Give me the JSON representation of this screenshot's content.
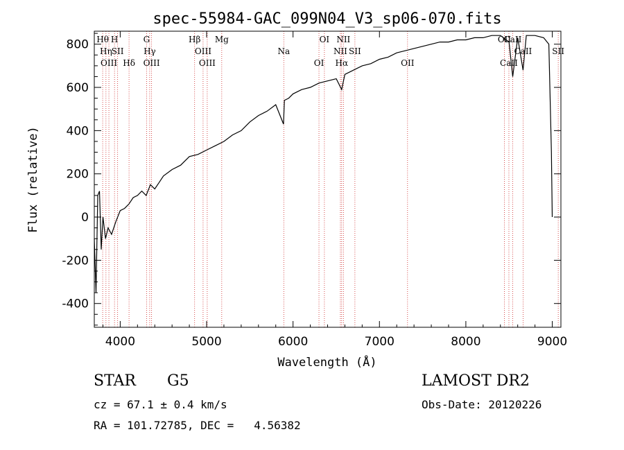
{
  "chart_data": {
    "type": "line",
    "title": "spec-55984-GAC_099N04_V3_sp06-070.fits",
    "xlabel": "Wavelength (Å)",
    "ylabel": "Flux (relative)",
    "xlim": [
      3700,
      9100
    ],
    "ylim": [
      -510,
      860
    ],
    "xticks": [
      4000,
      5000,
      6000,
      7000,
      8000,
      9000
    ],
    "yticks": [
      -400,
      -200,
      0,
      200,
      400,
      600,
      800
    ],
    "grid": false,
    "series": [
      {
        "x": [
          3700,
          3720,
          3740,
          3760,
          3780,
          3800,
          3830,
          3860,
          3900,
          3950,
          4000,
          4050,
          4100,
          4150,
          4200,
          4250,
          4300,
          4350,
          4400,
          4450,
          4500,
          4600,
          4700,
          4800,
          4900,
          5000,
          5100,
          5200,
          5300,
          5400,
          5500,
          5600,
          5700,
          5800,
          5890,
          5900,
          5950,
          6000,
          6100,
          6200,
          6300,
          6400,
          6500,
          6563,
          6600,
          6700,
          6800,
          6900,
          7000,
          7100,
          7200,
          7300,
          7400,
          7500,
          7600,
          7700,
          7800,
          7900,
          8000,
          8100,
          8200,
          8300,
          8400,
          8500,
          8542,
          8600,
          8662,
          8700,
          8800,
          8900,
          8960,
          8990,
          9000
        ],
        "y": [
          -100,
          -350,
          100,
          120,
          -150,
          0,
          -100,
          -50,
          -80,
          -20,
          30,
          40,
          60,
          90,
          100,
          120,
          100,
          150,
          130,
          160,
          190,
          220,
          240,
          280,
          290,
          310,
          330,
          350,
          380,
          400,
          440,
          470,
          490,
          520,
          430,
          540,
          550,
          570,
          590,
          600,
          620,
          630,
          640,
          590,
          660,
          680,
          700,
          710,
          730,
          740,
          760,
          770,
          780,
          790,
          800,
          810,
          810,
          820,
          820,
          830,
          830,
          840,
          840,
          810,
          650,
          830,
          680,
          840,
          840,
          830,
          800,
          300,
          0
        ]
      }
    ],
    "lines": [
      {
        "x": 3797,
        "labels": [
          "Hθ"
        ]
      },
      {
        "x": 3835,
        "labels": [
          "Hη"
        ]
      },
      {
        "x": 3869,
        "labels": [
          "OIII"
        ]
      },
      {
        "x": 3934,
        "labels": [
          "H"
        ]
      },
      {
        "x": 3970,
        "labels": [
          "SII"
        ]
      },
      {
        "x": 4102,
        "labels": [
          "Hδ"
        ]
      },
      {
        "x": 4305,
        "labels": [
          "G"
        ]
      },
      {
        "x": 4341,
        "labels": [
          "Hγ"
        ]
      },
      {
        "x": 4363,
        "labels": [
          "OIII"
        ]
      },
      {
        "x": 4861,
        "labels": [
          "Hβ"
        ]
      },
      {
        "x": 4959,
        "labels": [
          "OIII"
        ]
      },
      {
        "x": 5007,
        "labels": [
          "OIII"
        ]
      },
      {
        "x": 5175,
        "labels": [
          "Mg"
        ]
      },
      {
        "x": 5893,
        "labels": [
          "Na"
        ]
      },
      {
        "x": 6300,
        "labels": [
          "OI"
        ]
      },
      {
        "x": 6363,
        "labels": [
          "OI"
        ]
      },
      {
        "x": 6548,
        "labels": [
          "NII"
        ]
      },
      {
        "x": 6563,
        "labels": [
          "Hα"
        ]
      },
      {
        "x": 6583,
        "labels": [
          "NII"
        ]
      },
      {
        "x": 6716,
        "labels": [
          "SII"
        ]
      },
      {
        "x": 7325,
        "labels": [
          "OII"
        ]
      },
      {
        "x": 8446,
        "labels": [
          "OII"
        ]
      },
      {
        "x": 9069,
        "labels": [
          "SII"
        ]
      },
      {
        "x": 8498,
        "labels": [
          "CaII"
        ]
      },
      {
        "x": 8542,
        "labels": [
          "CaII"
        ]
      },
      {
        "x": 8662,
        "labels": [
          "CaII"
        ]
      }
    ]
  },
  "info": {
    "object_class": "STAR",
    "subclass": "G5",
    "survey": "LAMOST DR2",
    "redshift": "cz = 67.1 ± 0.4 km/s",
    "obs_date": "Obs-Date: 20120226",
    "coords": "RA = 101.72785, DEC =   4.56382"
  },
  "colors": {
    "spectrum": "#000000",
    "line_marker": "#cc2222",
    "axis": "#000000"
  }
}
